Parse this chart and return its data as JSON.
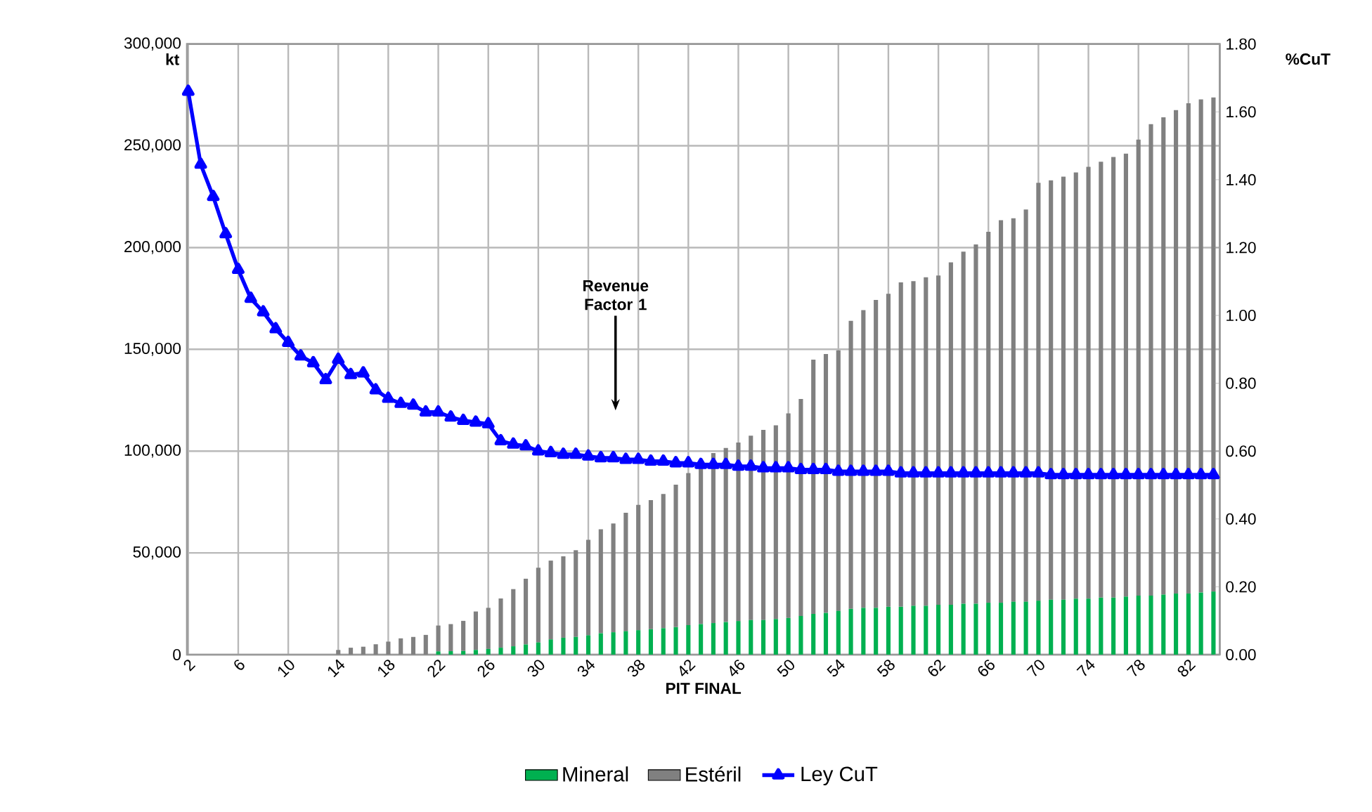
{
  "chart_data": {
    "type": "bar",
    "stacked": true,
    "xlabel": "PIT FINAL",
    "ylabel": "kt",
    "y2label": "%CuT",
    "categories": [
      "2",
      null,
      null,
      null,
      "6",
      null,
      null,
      null,
      "10",
      null,
      null,
      null,
      "14",
      null,
      null,
      null,
      "18",
      null,
      null,
      null,
      "22",
      null,
      null,
      null,
      "26",
      null,
      null,
      null,
      "30",
      null,
      null,
      null,
      "34",
      null,
      null,
      null,
      "38",
      null,
      null,
      null,
      "42",
      null,
      null,
      null,
      "46",
      null,
      null,
      null,
      "50",
      null,
      null,
      null,
      "54",
      null,
      null,
      null,
      "58",
      null,
      null,
      null,
      "62",
      null,
      null,
      null,
      "66",
      null,
      null,
      null,
      "70",
      null,
      null,
      null,
      "74",
      null,
      null,
      null,
      "78",
      null,
      null,
      null,
      "82",
      null,
      null
    ],
    "series": [
      {
        "name": "Mineral",
        "color": "#00b050",
        "values": [
          0,
          0,
          0,
          0,
          0,
          0,
          0,
          0,
          0,
          0,
          0,
          0,
          0,
          0,
          0,
          0,
          0,
          0,
          0,
          0,
          1600,
          1700,
          1800,
          2300,
          2800,
          3400,
          4100,
          5000,
          6000,
          7500,
          8300,
          8700,
          9500,
          10500,
          11000,
          11500,
          12000,
          12500,
          13000,
          13500,
          14500,
          15000,
          15500,
          16000,
          16500,
          17000,
          17000,
          17500,
          18000,
          19000,
          20000,
          20500,
          21500,
          22500,
          23000,
          23000,
          23500,
          23500,
          24000,
          24000,
          24500,
          24500,
          25000,
          25000,
          25500,
          25500,
          26000,
          26000,
          26500,
          27000,
          27000,
          27500,
          27500,
          28000,
          28000,
          28500,
          29000,
          29000,
          29500,
          30000,
          30000,
          30500,
          31000
        ]
      },
      {
        "name": "Estéril",
        "color": "#808080",
        "values": [
          0,
          0,
          0,
          0,
          0,
          0,
          0,
          0,
          0,
          0,
          0,
          0,
          2300,
          3400,
          3900,
          5100,
          6400,
          8000,
          8700,
          9700,
          12700,
          13300,
          14800,
          18900,
          20200,
          24200,
          28100,
          32300,
          36700,
          38700,
          40000,
          42600,
          46900,
          51100,
          53400,
          58200,
          61600,
          63400,
          65900,
          70000,
          74700,
          77000,
          83500,
          85500,
          87700,
          90600,
          93400,
          95200,
          100500,
          106600,
          124900,
          127200,
          128000,
          141500,
          146300,
          151300,
          153800,
          159400,
          159500,
          161400,
          161800,
          168200,
          173000,
          176500,
          182200,
          187900,
          188400,
          192700,
          205300,
          206000,
          207800,
          209400,
          212200,
          214200,
          216500,
          217600,
          224000,
          231600,
          234500,
          237500,
          240900,
          242300,
          242700
        ]
      },
      {
        "name": "Ley CuT",
        "color": "#0000ff",
        "type": "line",
        "axis": "y2",
        "marker": "triangle",
        "values": [
          1.66,
          1.445,
          1.35,
          1.24,
          1.135,
          1.05,
          1.01,
          0.96,
          0.92,
          0.88,
          0.86,
          0.81,
          0.87,
          0.825,
          0.83,
          0.78,
          0.755,
          0.74,
          0.735,
          0.715,
          0.715,
          0.7,
          0.69,
          0.685,
          0.68,
          0.63,
          0.62,
          0.615,
          0.6,
          0.595,
          0.59,
          0.59,
          0.585,
          0.58,
          0.58,
          0.575,
          0.575,
          0.57,
          0.57,
          0.565,
          0.565,
          0.56,
          0.56,
          0.56,
          0.555,
          0.555,
          0.55,
          0.55,
          0.55,
          0.545,
          0.545,
          0.545,
          0.54,
          0.54,
          0.54,
          0.54,
          0.54,
          0.535,
          0.535,
          0.535,
          0.535,
          0.535,
          0.535,
          0.535,
          0.535,
          0.535,
          0.535,
          0.535,
          0.535,
          0.53,
          0.53,
          0.53,
          0.53,
          0.53,
          0.53,
          0.53,
          0.53,
          0.53,
          0.53,
          0.53,
          0.53,
          0.53,
          0.53
        ]
      }
    ],
    "ylim": [
      0,
      300000
    ],
    "yticks": [
      0,
      {
        "value": 50000,
        "label": "50,000"
      },
      {
        "value": 100000,
        "label": "100,000"
      },
      {
        "value": 150000,
        "label": "150,000"
      },
      {
        "value": 200000,
        "label": "200,000"
      },
      {
        "value": 250000,
        "label": "250,000"
      },
      {
        "value": 300000,
        "label": "300,000"
      }
    ],
    "y2lim": [
      0,
      1.8
    ],
    "y2ticks": [
      {
        "value": 0,
        "label": "0.00"
      },
      {
        "value": 0.2,
        "label": "0.20"
      },
      {
        "value": 0.4,
        "label": "0.40"
      },
      {
        "value": 0.6,
        "label": "0.60"
      },
      {
        "value": 0.8,
        "label": "0.80"
      },
      {
        "value": 1.0,
        "label": "1.00"
      },
      {
        "value": 1.2,
        "label": "1.20"
      },
      {
        "value": 1.4,
        "label": "1.40"
      },
      {
        "value": 1.6,
        "label": "1.60"
      },
      {
        "value": 1.8,
        "label": "1.80"
      }
    ],
    "grid": true,
    "legend": "bottom",
    "annotations": [
      "Revenue Factor 1"
    ]
  }
}
